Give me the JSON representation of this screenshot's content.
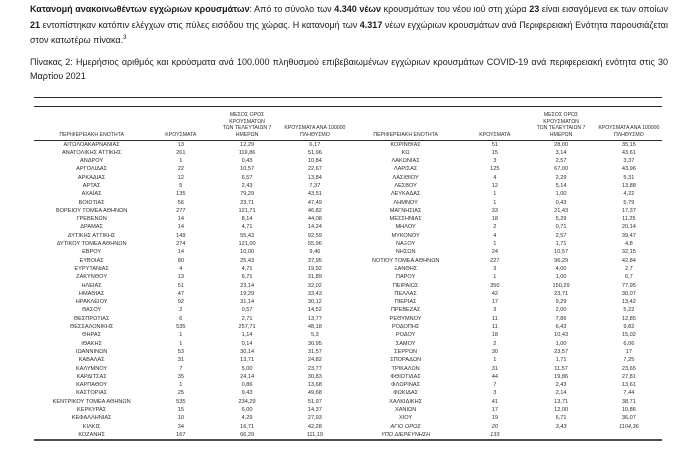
{
  "intro": {
    "segments": [
      {
        "text": "Κατανομή ανακοινωθέντων εγχώριων κρουσμάτων",
        "bold": true
      },
      {
        "text": ": Από το σύνολο των ",
        "bold": false
      },
      {
        "text": "4.340 νέων",
        "bold": true
      },
      {
        "text": " κρουσμάτων του νέου ιού στη χώρα ",
        "bold": false
      },
      {
        "text": "23",
        "bold": true
      },
      {
        "text": " είναι εισαγόμενα εκ των οποίων ",
        "bold": false
      },
      {
        "text": "21",
        "bold": true
      },
      {
        "text": " εντοπίστηκαν κατόπιν ελέγχων στις πύλες εισόδου της χώρας.  Η κατανομή των ",
        "bold": false
      },
      {
        "text": "4.317",
        "bold": true
      },
      {
        "text": " νέων εγχώριων κρουσμάτων ανά Περιφερειακή Ενότητα παρουσιάζεται στον κατωτέρω πίνακα.",
        "bold": false
      },
      {
        "text": "3",
        "bold": false,
        "sup": true
      }
    ]
  },
  "caption": "Πίνακας 2: Ημερήσιος αριθμός και κρούσματα ανά 100.000 πληθυσμού επιβεβαιωμένων εγχώριων κρουσμάτων COVID-19 ανά περιφερειακή ενότητα στις 30 Μαρτίου 2021",
  "table": {
    "headers": {
      "region": "ΠΕΡΙΦΕΡΕΙΑΚΗ ΕΝΟΤΗΤΑ",
      "cases": "ΚΡΟΥΣΜΑΤΑ",
      "avg7": "ΜΕΣΟΣ ΟΡΟΣ ΚΡΟΥΣΜΑΤΩΝ\nΤΩΝ ΤΕΛΕΥΤΑΙΩΝ 7\nΗΜΕΡΩΝ",
      "per100k": "ΚΡΟΥΣΜΑΤΑ ΑΝΑ 100000\nΠΛΗΘΥΣΜΟ"
    },
    "left_rows": [
      [
        "ΑΙΤΩΛΟΑΚΑΡΝΑΝΙΑΣ",
        "13",
        "12,29",
        "6,17"
      ],
      [
        "ΑΝΑΤΟΛΙΚΗΣ ΑΤΤΙΚΗΣ",
        "261",
        "119,86",
        "51,96"
      ],
      [
        "ΑΝΔΡΟΥ",
        "1",
        "0,43",
        "10,84"
      ],
      [
        "ΑΡΓΟΛΙΔΑΣ",
        "22",
        "10,57",
        "22,67"
      ],
      [
        "ΑΡΚΑΔΙΑΣ",
        "12",
        "6,57",
        "13,84"
      ],
      [
        "ΑΡΤΑΣ",
        "5",
        "2,43",
        "7,37"
      ],
      [
        "ΑΧΑΪΑΣ",
        "135",
        "79,29",
        "43,51"
      ],
      [
        "ΒΟΙΩΤΙΑΣ",
        "56",
        "23,71",
        "47,49"
      ],
      [
        "ΒΟΡΕΙΟΥ ΤΟΜΕΑ ΑΘΗΝΩΝ",
        "277",
        "121,71",
        "46,82"
      ],
      [
        "ΓΡΕΒΕΝΩΝ",
        "14",
        "8,14",
        "44,08"
      ],
      [
        "ΔΡΑΜΑΣ",
        "14",
        "4,71",
        "14,24"
      ],
      [
        "ΔΥΤΙΚΗΣ ΑΤΤΙΚΗΣ",
        "149",
        "55,43",
        "92,59"
      ],
      [
        "ΔΥΤΙΚΟΥ ΤΟΜΕΑ ΑΘΗΝΩΝ",
        "274",
        "121,00",
        "55,96"
      ],
      [
        "ΕΒΡΟΥ",
        "14",
        "10,00",
        "9,46"
      ],
      [
        "ΕΥΒΟΙΑΣ",
        "80",
        "25,43",
        "37,95"
      ],
      [
        "ΕΥΡΥΤΑΝΙΑΣ",
        "4",
        "4,71",
        "19,92"
      ],
      [
        "ΖΑΚΥΝΘΟΥ",
        "13",
        "6,71",
        "31,89"
      ],
      [
        "ΗΛΕΙΑΣ",
        "51",
        "23,14",
        "32,02"
      ],
      [
        "ΗΜΑΘΙΑΣ",
        "47",
        "19,29",
        "33,43"
      ],
      [
        "ΗΡΑΚΛΕΙΟΥ",
        "92",
        "31,14",
        "30,12"
      ],
      [
        "ΘΑΣΟΥ",
        "2",
        "0,57",
        "14,52"
      ],
      [
        "ΘΕΣΠΡΩΤΙΑΣ",
        "6",
        "2,71",
        "13,77"
      ],
      [
        "ΘΕΣΣΑΛΟΝΙΚΗΣ",
        "535",
        "257,71",
        "48,18"
      ],
      [
        "ΘΗΡΑΣ",
        "1",
        "1,14",
        "5,3"
      ],
      [
        "ΙΘΑΚΗΣ",
        "1",
        "0,14",
        "30,95"
      ],
      [
        "ΙΩΑΝΝΙΝΩΝ",
        "53",
        "30,14",
        "31,57"
      ],
      [
        "ΚΑΒΑΛΑΣ",
        "31",
        "13,71",
        "24,82"
      ],
      [
        "ΚΑΛΥΜΝΟΥ",
        "7",
        "5,00",
        "23,77"
      ],
      [
        "ΚΑΡΔΙΤΣΑΣ",
        "35",
        "24,14",
        "30,83"
      ],
      [
        "ΚΑΡΠΑΘΟΥ",
        "1",
        "0,86",
        "13,68"
      ],
      [
        "ΚΑΣΤΟΡΙΑΣ",
        "25",
        "9,43",
        "49,68"
      ],
      [
        "ΚΕΝΤΡΙΚΟΥ ΤΟΜΕΑ ΑΘΗΝΩΝ",
        "535",
        "234,29",
        "51,97"
      ],
      [
        "ΚΕΡΚΥΡΑΣ",
        "15",
        "6,00",
        "14,37"
      ],
      [
        "ΚΕΦΑΛΛΗΝΙΑΣ",
        "10",
        "4,29",
        "27,93"
      ],
      [
        "ΚΙΛΚΙΣ",
        "34",
        "16,71",
        "42,28"
      ],
      [
        "ΚΟΖΑΝΗΣ",
        "167",
        "66,29",
        "111,19"
      ]
    ],
    "right_rows": [
      [
        "ΚΟΡΙΝΘΙΑΣ",
        "51",
        "28,00",
        "35,15"
      ],
      [
        "ΚΩ",
        "15",
        "3,14",
        "43,61"
      ],
      [
        "ΛΑΚΩΝΙΑΣ",
        "3",
        "2,57",
        "3,37"
      ],
      [
        "ΛΑΡΙΣΑΣ",
        "125",
        "67,00",
        "43,96"
      ],
      [
        "ΛΑΣΙΘΙΟΥ",
        "4",
        "2,29",
        "5,31"
      ],
      [
        "ΛΕΣΒΟΥ",
        "12",
        "5,14",
        "13,88"
      ],
      [
        "ΛΕΥΚΑΔΑΣ",
        "1",
        "1,00",
        "4,22"
      ],
      [
        "ΛΗΜΝΟΥ",
        "1",
        "0,43",
        "5,79"
      ],
      [
        "ΜΑΓΝΗΣΙΑΣ",
        "33",
        "21,43",
        "17,37"
      ],
      [
        "ΜΕΣΣΗΝΙΑΣ",
        "18",
        "5,29",
        "11,25"
      ],
      [
        "ΜΗΛΟΥ",
        "2",
        "0,71",
        "20,14"
      ],
      [
        "ΜΥΚΟΝΟΥ",
        "4",
        "2,57",
        "39,47"
      ],
      [
        "ΝΑΞΟΥ",
        "1",
        "1,71",
        "4,8"
      ],
      [
        "ΝΗΣΩΝ",
        "24",
        "10,57",
        "32,15"
      ],
      [
        "ΝΟΤΙΟΥ ΤΟΜΕΑ ΑΘΗΝΩΝ",
        "227",
        "96,29",
        "42,84"
      ],
      [
        "ΞΑΝΘΗΣ",
        "3",
        "4,00",
        "2,7"
      ],
      [
        "ΠΑΡΟΥ",
        "1",
        "1,00",
        "6,7"
      ],
      [
        "ΠΕΙΡΑΙΩΣ",
        "350",
        "150,29",
        "77,95"
      ],
      [
        "ΠΕΛΛΑΣ",
        "42",
        "23,71",
        "30,07"
      ],
      [
        "ΠΙΕΡΙΑΣ",
        "17",
        "9,29",
        "13,42"
      ],
      [
        "ΠΡΕΒΕΖΑΣ",
        "3",
        "2,00",
        "5,22"
      ],
      [
        "ΡΕΘΥΜΝΟΥ",
        "11",
        "7,86",
        "12,85"
      ],
      [
        "ΡΟΔΟΠΗΣ",
        "11",
        "6,43",
        "9,82"
      ],
      [
        "ΡΟΔΟΥ",
        "18",
        "10,43",
        "15,02"
      ],
      [
        "ΣΑΜΟΥ",
        "2",
        "1,00",
        "6,06"
      ],
      [
        "ΣΕΡΡΩΝ",
        "30",
        "23,57",
        "17"
      ],
      [
        "ΣΠΟΡΑΔΩΝ",
        "1",
        "1,71",
        "7,25"
      ],
      [
        "ΤΡΙΚΑΛΩΝ",
        "31",
        "11,57",
        "23,65"
      ],
      [
        "ΦΘΙΩΤΙΔΑΣ",
        "44",
        "19,86",
        "27,81"
      ],
      [
        "ΦΛΩΡΙΝΑΣ",
        "7",
        "2,43",
        "13,61"
      ],
      [
        "ΦΩΚΙΔΑΣ",
        "3",
        "2,14",
        "7,44"
      ],
      [
        "ΧΑΛΚΙΔΙΚΗΣ",
        "41",
        "13,71",
        "38,71"
      ],
      [
        "ΧΑΝΙΩΝ",
        "17",
        "12,00",
        "10,86"
      ],
      [
        "ΧΙΟΥ",
        "19",
        "6,71",
        "36,07"
      ],
      [
        "ΑΓΙΟ ΟΡΟΣ",
        "20",
        "3,43",
        "1104,36",
        "i"
      ],
      [
        "ΥΠΟ ΔΙΕΡΕΥΝΗΣΗ",
        "133",
        "",
        "",
        "i"
      ]
    ]
  }
}
